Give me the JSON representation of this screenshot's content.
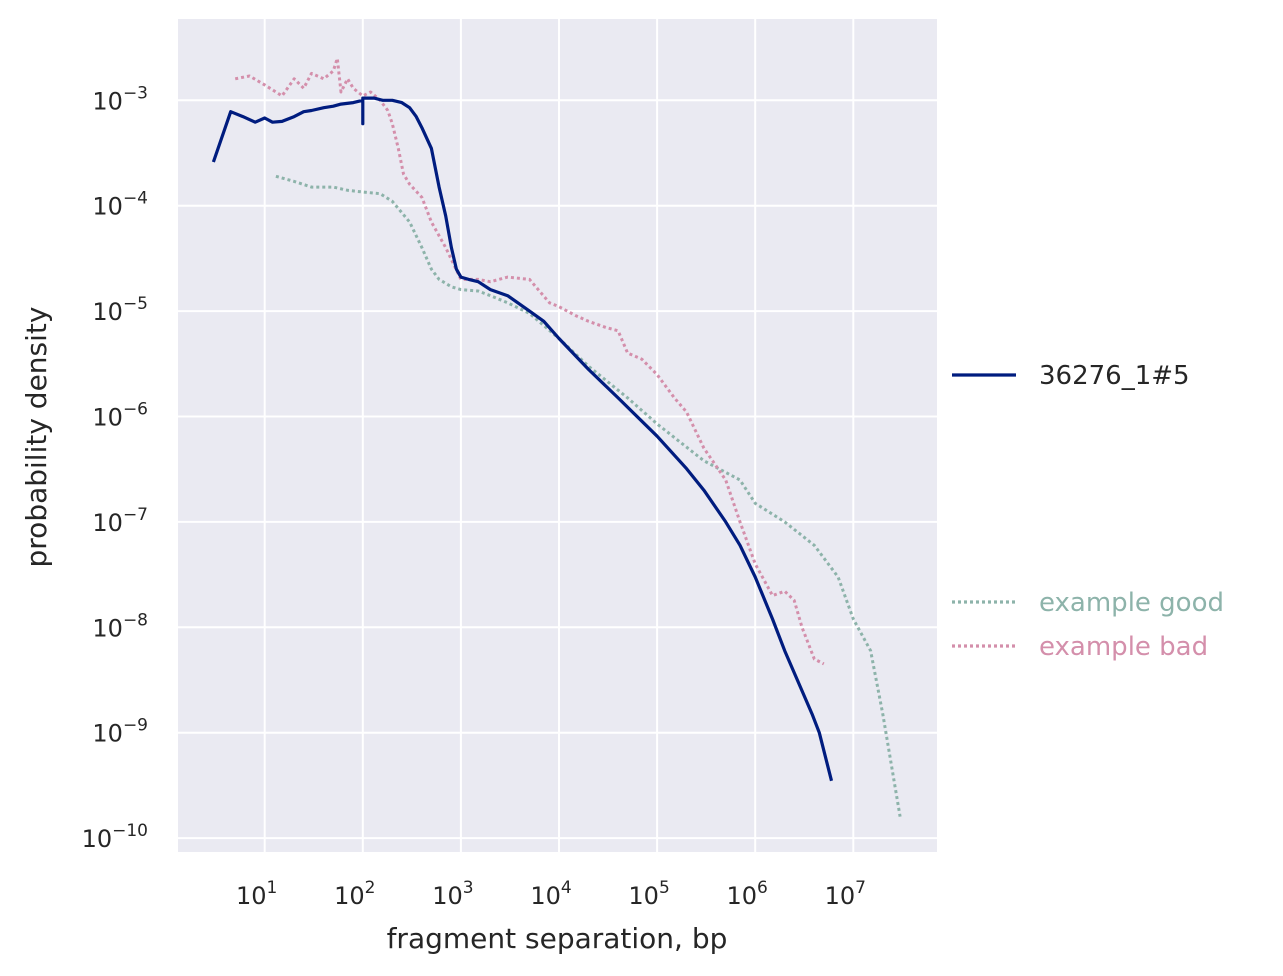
{
  "chart_data": {
    "type": "line",
    "xlabel": "fragment separation, bp",
    "ylabel": "probability density",
    "xscale": "log",
    "yscale": "log",
    "xlim": [
      1.5,
      70000000
    ],
    "ylim": [
      6e-11,
      0.006
    ],
    "grid": true,
    "legend_placement": "right, outside plot",
    "x_ticks": [
      {
        "value": 10,
        "base": "10",
        "exp": "1"
      },
      {
        "value": 100,
        "base": "10",
        "exp": "2"
      },
      {
        "value": 1000,
        "base": "10",
        "exp": "3"
      },
      {
        "value": 10000,
        "base": "10",
        "exp": "4"
      },
      {
        "value": 100000,
        "base": "10",
        "exp": "5"
      },
      {
        "value": 1000000,
        "base": "10",
        "exp": "6"
      },
      {
        "value": 10000000,
        "base": "10",
        "exp": "7"
      }
    ],
    "y_ticks": [
      {
        "value": 0.001,
        "base": "10",
        "exp": "−3"
      },
      {
        "value": 0.0001,
        "base": "10",
        "exp": "−4"
      },
      {
        "value": 1e-05,
        "base": "10",
        "exp": "−5"
      },
      {
        "value": 1e-06,
        "base": "10",
        "exp": "−6"
      },
      {
        "value": 1e-07,
        "base": "10",
        "exp": "−7"
      },
      {
        "value": 1e-08,
        "base": "10",
        "exp": "−8"
      },
      {
        "value": 1e-09,
        "base": "10",
        "exp": "−9"
      },
      {
        "value": 1e-10,
        "base": "10",
        "exp": "−10"
      }
    ],
    "series": [
      {
        "name": "36276_1#5",
        "color": "#001c7f",
        "style": "solid",
        "x": [
          3,
          4.5,
          6,
          8,
          10,
          12,
          15,
          20,
          25,
          30,
          40,
          50,
          60,
          80,
          100,
          100,
          100,
          130,
          160,
          200,
          250,
          300,
          350,
          400,
          500,
          600,
          700,
          800,
          900,
          1000,
          1200,
          1500,
          2000,
          3000,
          5000,
          7000,
          10000,
          20000,
          40000,
          100000,
          200000,
          300000,
          500000,
          700000,
          1000000,
          1500000,
          2000000,
          3000000,
          3800000,
          4500000,
          6000000
        ],
        "y": [
          0.00026,
          0.00078,
          0.0007,
          0.00062,
          0.00068,
          0.00062,
          0.00063,
          0.0007,
          0.00078,
          0.0008,
          0.00085,
          0.00088,
          0.00092,
          0.00095,
          0.001,
          0.0006,
          0.00105,
          0.00105,
          0.001,
          0.001,
          0.00095,
          0.00085,
          0.0007,
          0.00055,
          0.00035,
          0.00015,
          8e-05,
          4e-05,
          2.5e-05,
          2.1e-05,
          2e-05,
          1.9e-05,
          1.6e-05,
          1.4e-05,
          1e-05,
          8e-06,
          5.5e-06,
          2.8e-06,
          1.5e-06,
          6.5e-07,
          3.2e-07,
          2e-07,
          1e-07,
          6e-08,
          3e-08,
          1.2e-08,
          6e-09,
          2.5e-09,
          1.5e-09,
          1e-09,
          3.5e-10
        ]
      },
      {
        "name": "example good",
        "color": "#8db3aa",
        "style": "dotted",
        "x": [
          13,
          20,
          30,
          50,
          70,
          100,
          150,
          200,
          300,
          400,
          500,
          600,
          800,
          1000,
          1500,
          2000,
          3000,
          5000,
          10000,
          20000,
          50000,
          100000,
          300000,
          700000,
          1000000,
          2000000,
          4000000,
          7000000,
          10000000,
          15000000,
          20000000,
          30000000
        ],
        "y": [
          0.00019,
          0.00017,
          0.00015,
          0.00015,
          0.00014,
          0.000135,
          0.00013,
          0.00011,
          7e-05,
          4e-05,
          2.5e-05,
          2e-05,
          1.7e-05,
          1.6e-05,
          1.55e-05,
          1.4e-05,
          1.2e-05,
          9.5e-06,
          5.5e-06,
          3e-06,
          1.5e-06,
          8.5e-07,
          3.8e-07,
          2.5e-07,
          1.5e-07,
          1e-07,
          6e-08,
          3e-08,
          1.2e-08,
          6e-09,
          1.5e-09,
          1.6e-10
        ]
      },
      {
        "name": "example bad",
        "color": "#d48fab",
        "style": "dotted",
        "x": [
          5,
          7,
          10,
          15,
          20,
          25,
          30,
          40,
          50,
          55,
          60,
          70,
          80,
          100,
          120,
          150,
          180,
          200,
          230,
          260,
          300,
          400,
          500,
          700,
          1000,
          1500,
          2000,
          3000,
          5000,
          8000,
          10000,
          15000,
          20000,
          30000,
          40000,
          50000,
          70000,
          100000,
          150000,
          200000,
          300000,
          500000,
          700000,
          1000000,
          1500000,
          2000000,
          2500000,
          3000000,
          4000000,
          5000000
        ],
        "y": [
          0.0016,
          0.0017,
          0.0014,
          0.0011,
          0.0016,
          0.0013,
          0.0018,
          0.0016,
          0.0019,
          0.0025,
          0.0012,
          0.0016,
          0.0013,
          0.0011,
          0.0012,
          0.001,
          0.0008,
          0.0006,
          0.00035,
          0.0002,
          0.00016,
          0.00012,
          7e-05,
          4e-05,
          2e-05,
          2e-05,
          1.9e-05,
          2.1e-05,
          2e-05,
          1.2e-05,
          1.1e-05,
          9e-06,
          8e-06,
          7e-06,
          6.5e-06,
          4e-06,
          3.5e-06,
          2.5e-06,
          1.5e-06,
          1.1e-06,
          5e-07,
          2.5e-07,
          1e-07,
          4e-08,
          2e-08,
          2.2e-08,
          1.8e-08,
          1e-08,
          5e-09,
          4.5e-09
        ]
      }
    ],
    "legend": [
      {
        "name": "36276_1#5",
        "color": "#001c7f",
        "style": "solid",
        "text_color": "#262626"
      },
      {
        "name": "example good",
        "color": "#8db3aa",
        "style": "dotted",
        "text_color": "#8db3aa"
      },
      {
        "name": "example bad",
        "color": "#d48fab",
        "style": "dotted",
        "text_color": "#d48fab"
      }
    ]
  }
}
